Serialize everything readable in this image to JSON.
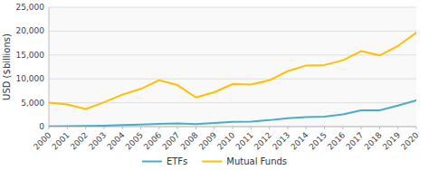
{
  "chart_data": {
    "type": "line",
    "y_label": "USD ($billions)",
    "x": [
      2000,
      2001,
      2002,
      2003,
      2004,
      2005,
      2006,
      2007,
      2008,
      2009,
      2010,
      2011,
      2012,
      2013,
      2014,
      2015,
      2016,
      2017,
      2018,
      2019,
      2020
    ],
    "series": [
      {
        "name": "ETFs",
        "color": "#4bacc6",
        "values": [
          66,
          105,
          142,
          212,
          310,
          413,
          580,
          650,
          530,
          780,
          1000,
          1050,
          1350,
          1750,
          2000,
          2100,
          2550,
          3400,
          3400,
          4400,
          5500
        ]
      },
      {
        "name": "Mutual Funds",
        "color": "#ffc000",
        "values": [
          5000,
          4650,
          3700,
          5100,
          6700,
          7900,
          9700,
          8700,
          6100,
          7200,
          8900,
          8800,
          9700,
          11600,
          12800,
          12900,
          13900,
          15800,
          14900,
          16900,
          19700
        ]
      }
    ],
    "xlim": [
      2000,
      2020
    ],
    "xticks": [
      2000,
      2001,
      2002,
      2003,
      2004,
      2005,
      2006,
      2007,
      2008,
      2009,
      2010,
      2011,
      2012,
      2013,
      2014,
      2015,
      2016,
      2017,
      2018,
      2019,
      2020
    ],
    "ylim": [
      0,
      25000
    ],
    "yticks": [
      0,
      {
        "value": 5000,
        "label": "5,000"
      },
      {
        "value": 10000,
        "label": "10,000"
      },
      {
        "value": 15000,
        "label": "15,000"
      },
      {
        "value": 20000,
        "label": "20,000"
      },
      {
        "value": 25000,
        "label": "25,000"
      }
    ],
    "grid": true,
    "legend": "bottom"
  }
}
